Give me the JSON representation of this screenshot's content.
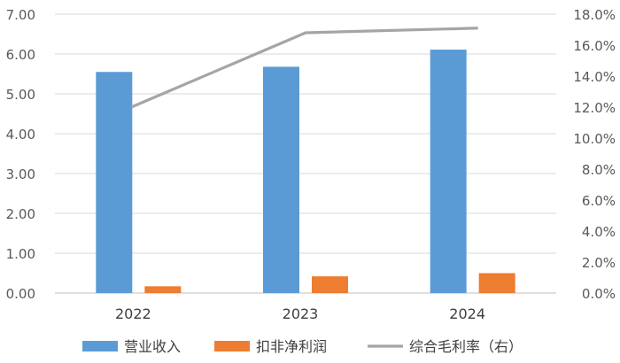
{
  "chart_data": {
    "type": "bar",
    "categories": [
      "2022",
      "2023",
      "2024"
    ],
    "series": [
      {
        "name": "营业收入",
        "kind": "bar",
        "axis": "left",
        "color": "#5B9BD5",
        "values": [
          5.55,
          5.68,
          6.11
        ]
      },
      {
        "name": "扣非净利润",
        "kind": "bar",
        "axis": "left",
        "color": "#ED7D31",
        "values": [
          0.17,
          0.42,
          0.5
        ]
      },
      {
        "name": "综合毛利率（右）",
        "kind": "line",
        "axis": "right",
        "color": "#A5A5A5",
        "values": [
          12.0,
          16.8,
          17.1
        ]
      }
    ],
    "y_left": {
      "range": [
        0,
        7
      ],
      "ticks": [
        "0.00",
        "1.00",
        "2.00",
        "3.00",
        "4.00",
        "5.00",
        "6.00",
        "7.00"
      ]
    },
    "y_right": {
      "range": [
        0,
        18
      ],
      "ticks": [
        "0.0%",
        "2.0%",
        "4.0%",
        "6.0%",
        "8.0%",
        "10.0%",
        "12.0%",
        "14.0%",
        "16.0%",
        "18.0%"
      ]
    },
    "grid": true,
    "legend": "bottom"
  }
}
